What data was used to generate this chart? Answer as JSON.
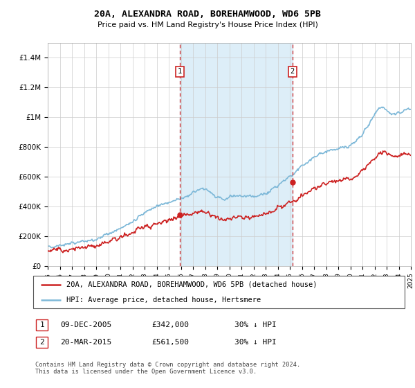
{
  "title": "20A, ALEXANDRA ROAD, BOREHAMWOOD, WD6 5PB",
  "subtitle": "Price paid vs. HM Land Registry's House Price Index (HPI)",
  "hpi_color": "#7db8d8",
  "price_color": "#cc2222",
  "vline_color": "#cc2222",
  "highlight_fill": "#ddeef8",
  "ylim": [
    0,
    1500000
  ],
  "yticks": [
    0,
    200000,
    400000,
    600000,
    800000,
    1000000,
    1200000,
    1400000
  ],
  "ytick_labels": [
    "£0",
    "£200K",
    "£400K",
    "£600K",
    "£800K",
    "£1M",
    "£1.2M",
    "£1.4M"
  ],
  "xstart_year": 1995,
  "xend_year": 2025,
  "purchase1_year": 2005.92,
  "purchase1_price": 342000,
  "purchase2_year": 2015.22,
  "purchase2_price": 561500,
  "legend_label_price": "20A, ALEXANDRA ROAD, BOREHAMWOOD, WD6 5PB (detached house)",
  "legend_label_hpi": "HPI: Average price, detached house, Hertsmere",
  "table_row1": [
    "1",
    "09-DEC-2005",
    "£342,000",
    "30% ↓ HPI"
  ],
  "table_row2": [
    "2",
    "20-MAR-2015",
    "£561,500",
    "30% ↓ HPI"
  ],
  "footer": "Contains HM Land Registry data © Crown copyright and database right 2024.\nThis data is licensed under the Open Government Licence v3.0.",
  "background_color": "#ffffff",
  "grid_color": "#cccccc",
  "hpi_points": [
    [
      1995.0,
      130000
    ],
    [
      1995.5,
      133000
    ],
    [
      1996.0,
      137000
    ],
    [
      1996.5,
      142000
    ],
    [
      1997.0,
      150000
    ],
    [
      1997.5,
      158000
    ],
    [
      1998.0,
      165000
    ],
    [
      1998.5,
      172000
    ],
    [
      1999.0,
      182000
    ],
    [
      1999.5,
      195000
    ],
    [
      2000.0,
      210000
    ],
    [
      2000.5,
      228000
    ],
    [
      2001.0,
      248000
    ],
    [
      2001.5,
      268000
    ],
    [
      2002.0,
      295000
    ],
    [
      2002.5,
      325000
    ],
    [
      2003.0,
      355000
    ],
    [
      2003.5,
      378000
    ],
    [
      2004.0,
      400000
    ],
    [
      2004.5,
      418000
    ],
    [
      2005.0,
      430000
    ],
    [
      2005.5,
      438000
    ],
    [
      2006.0,
      450000
    ],
    [
      2006.5,
      465000
    ],
    [
      2007.0,
      490000
    ],
    [
      2007.5,
      510000
    ],
    [
      2008.0,
      515000
    ],
    [
      2008.5,
      490000
    ],
    [
      2009.0,
      460000
    ],
    [
      2009.5,
      450000
    ],
    [
      2010.0,
      465000
    ],
    [
      2010.5,
      475000
    ],
    [
      2011.0,
      470000
    ],
    [
      2011.5,
      465000
    ],
    [
      2012.0,
      468000
    ],
    [
      2012.5,
      475000
    ],
    [
      2013.0,
      490000
    ],
    [
      2013.5,
      510000
    ],
    [
      2014.0,
      540000
    ],
    [
      2014.5,
      570000
    ],
    [
      2015.0,
      600000
    ],
    [
      2015.5,
      635000
    ],
    [
      2016.0,
      670000
    ],
    [
      2016.5,
      700000
    ],
    [
      2017.0,
      730000
    ],
    [
      2017.5,
      755000
    ],
    [
      2018.0,
      770000
    ],
    [
      2018.5,
      780000
    ],
    [
      2019.0,
      790000
    ],
    [
      2019.5,
      800000
    ],
    [
      2020.0,
      810000
    ],
    [
      2020.5,
      840000
    ],
    [
      2021.0,
      890000
    ],
    [
      2021.5,
      950000
    ],
    [
      2022.0,
      1020000
    ],
    [
      2022.5,
      1060000
    ],
    [
      2023.0,
      1040000
    ],
    [
      2023.5,
      1020000
    ],
    [
      2024.0,
      1030000
    ],
    [
      2024.5,
      1050000
    ],
    [
      2025.0,
      1060000
    ]
  ],
  "price_points": [
    [
      1995.0,
      95000
    ],
    [
      1995.5,
      98000
    ],
    [
      1996.0,
      102000
    ],
    [
      1996.5,
      106000
    ],
    [
      1997.0,
      112000
    ],
    [
      1997.5,
      118000
    ],
    [
      1998.0,
      124000
    ],
    [
      1998.5,
      130000
    ],
    [
      1999.0,
      138000
    ],
    [
      1999.5,
      148000
    ],
    [
      2000.0,
      160000
    ],
    [
      2000.5,
      173000
    ],
    [
      2001.0,
      188000
    ],
    [
      2001.5,
      202000
    ],
    [
      2002.0,
      220000
    ],
    [
      2002.5,
      240000
    ],
    [
      2003.0,
      258000
    ],
    [
      2003.5,
      272000
    ],
    [
      2004.0,
      285000
    ],
    [
      2004.5,
      298000
    ],
    [
      2005.0,
      308000
    ],
    [
      2005.5,
      315000
    ],
    [
      2006.0,
      325000
    ],
    [
      2006.5,
      335000
    ],
    [
      2007.0,
      350000
    ],
    [
      2007.5,
      360000
    ],
    [
      2008.0,
      355000
    ],
    [
      2008.5,
      338000
    ],
    [
      2009.0,
      318000
    ],
    [
      2009.5,
      310000
    ],
    [
      2010.0,
      320000
    ],
    [
      2010.5,
      330000
    ],
    [
      2011.0,
      328000
    ],
    [
      2011.5,
      325000
    ],
    [
      2012.0,
      328000
    ],
    [
      2012.5,
      335000
    ],
    [
      2013.0,
      348000
    ],
    [
      2013.5,
      362000
    ],
    [
      2014.0,
      382000
    ],
    [
      2014.5,
      402000
    ],
    [
      2015.0,
      425000
    ],
    [
      2015.5,
      448000
    ],
    [
      2016.0,
      472000
    ],
    [
      2016.5,
      495000
    ],
    [
      2017.0,
      518000
    ],
    [
      2017.5,
      538000
    ],
    [
      2018.0,
      552000
    ],
    [
      2018.5,
      562000
    ],
    [
      2019.0,
      570000
    ],
    [
      2019.5,
      578000
    ],
    [
      2020.0,
      582000
    ],
    [
      2020.5,
      602000
    ],
    [
      2021.0,
      638000
    ],
    [
      2021.5,
      680000
    ],
    [
      2022.0,
      725000
    ],
    [
      2022.5,
      755000
    ],
    [
      2023.0,
      748000
    ],
    [
      2023.5,
      735000
    ],
    [
      2024.0,
      740000
    ],
    [
      2024.5,
      752000
    ],
    [
      2025.0,
      758000
    ]
  ]
}
